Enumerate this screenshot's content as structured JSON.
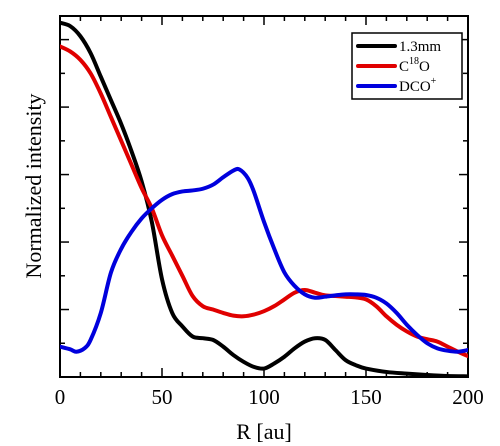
{
  "chart_data": {
    "type": "line",
    "title": "",
    "xlabel": "R [au]",
    "ylabel": "Normalized intensity",
    "xlim": [
      0,
      200
    ],
    "ylim": [
      0,
      1.07
    ],
    "xticks": [
      0,
      50,
      100,
      150,
      200
    ],
    "xtick_labels": [
      "0",
      "50",
      "100",
      "150",
      "200"
    ],
    "yticks": [
      0.2,
      0.4,
      0.6,
      0.8,
      1.0
    ],
    "grid": false,
    "legend_position": "top-right",
    "series": [
      {
        "name": "1.3mm",
        "legend_main": "1.3mm",
        "legend_sup": "",
        "legend_tail": "",
        "color": "#000000",
        "points": [
          [
            0,
            1.05
          ],
          [
            5,
            1.04
          ],
          [
            10,
            1.01
          ],
          [
            15,
            0.96
          ],
          [
            20,
            0.89
          ],
          [
            25,
            0.82
          ],
          [
            30,
            0.75
          ],
          [
            35,
            0.67
          ],
          [
            40,
            0.58
          ],
          [
            45,
            0.46
          ],
          [
            50,
            0.29
          ],
          [
            55,
            0.19
          ],
          [
            60,
            0.15
          ],
          [
            65,
            0.12
          ],
          [
            70,
            0.115
          ],
          [
            75,
            0.11
          ],
          [
            80,
            0.09
          ],
          [
            85,
            0.065
          ],
          [
            90,
            0.045
          ],
          [
            95,
            0.03
          ],
          [
            100,
            0.025
          ],
          [
            105,
            0.04
          ],
          [
            110,
            0.06
          ],
          [
            115,
            0.085
          ],
          [
            120,
            0.105
          ],
          [
            125,
            0.115
          ],
          [
            130,
            0.11
          ],
          [
            135,
            0.08
          ],
          [
            140,
            0.05
          ],
          [
            145,
            0.035
          ],
          [
            150,
            0.025
          ],
          [
            160,
            0.015
          ],
          [
            170,
            0.01
          ],
          [
            180,
            0.006
          ],
          [
            190,
            0.003
          ],
          [
            200,
            0.002
          ]
        ]
      },
      {
        "name": "C18O",
        "legend_main": "C",
        "legend_sup": "18",
        "legend_tail": "O",
        "color": "#e00000",
        "points": [
          [
            0,
            0.98
          ],
          [
            5,
            0.965
          ],
          [
            10,
            0.94
          ],
          [
            15,
            0.9
          ],
          [
            20,
            0.84
          ],
          [
            25,
            0.77
          ],
          [
            30,
            0.7
          ],
          [
            35,
            0.63
          ],
          [
            40,
            0.56
          ],
          [
            45,
            0.5
          ],
          [
            50,
            0.42
          ],
          [
            55,
            0.36
          ],
          [
            60,
            0.3
          ],
          [
            65,
            0.24
          ],
          [
            70,
            0.21
          ],
          [
            75,
            0.2
          ],
          [
            80,
            0.19
          ],
          [
            85,
            0.182
          ],
          [
            90,
            0.18
          ],
          [
            95,
            0.185
          ],
          [
            100,
            0.195
          ],
          [
            105,
            0.21
          ],
          [
            110,
            0.23
          ],
          [
            115,
            0.25
          ],
          [
            120,
            0.258
          ],
          [
            125,
            0.25
          ],
          [
            130,
            0.242
          ],
          [
            135,
            0.24
          ],
          [
            140,
            0.238
          ],
          [
            145,
            0.236
          ],
          [
            150,
            0.23
          ],
          [
            155,
            0.21
          ],
          [
            160,
            0.18
          ],
          [
            165,
            0.155
          ],
          [
            170,
            0.135
          ],
          [
            175,
            0.12
          ],
          [
            180,
            0.112
          ],
          [
            185,
            0.105
          ],
          [
            190,
            0.09
          ],
          [
            195,
            0.075
          ],
          [
            200,
            0.062
          ]
        ]
      },
      {
        "name": "DCO+",
        "legend_main": "DCO",
        "legend_sup": "+",
        "legend_tail": "",
        "color": "#0000dd",
        "points": [
          [
            0,
            0.09
          ],
          [
            5,
            0.082
          ],
          [
            8,
            0.075
          ],
          [
            12,
            0.085
          ],
          [
            15,
            0.11
          ],
          [
            20,
            0.19
          ],
          [
            25,
            0.31
          ],
          [
            30,
            0.38
          ],
          [
            35,
            0.43
          ],
          [
            40,
            0.47
          ],
          [
            45,
            0.5
          ],
          [
            50,
            0.525
          ],
          [
            55,
            0.542
          ],
          [
            60,
            0.55
          ],
          [
            65,
            0.553
          ],
          [
            70,
            0.558
          ],
          [
            75,
            0.57
          ],
          [
            80,
            0.592
          ],
          [
            85,
            0.612
          ],
          [
            88,
            0.615
          ],
          [
            92,
            0.59
          ],
          [
            95,
            0.55
          ],
          [
            100,
            0.46
          ],
          [
            105,
            0.38
          ],
          [
            110,
            0.31
          ],
          [
            115,
            0.27
          ],
          [
            120,
            0.245
          ],
          [
            125,
            0.235
          ],
          [
            130,
            0.238
          ],
          [
            135,
            0.242
          ],
          [
            140,
            0.245
          ],
          [
            145,
            0.245
          ],
          [
            150,
            0.243
          ],
          [
            155,
            0.235
          ],
          [
            160,
            0.218
          ],
          [
            165,
            0.19
          ],
          [
            170,
            0.155
          ],
          [
            175,
            0.125
          ],
          [
            180,
            0.1
          ],
          [
            185,
            0.085
          ],
          [
            190,
            0.078
          ],
          [
            195,
            0.075
          ],
          [
            200,
            0.08
          ]
        ]
      }
    ]
  }
}
